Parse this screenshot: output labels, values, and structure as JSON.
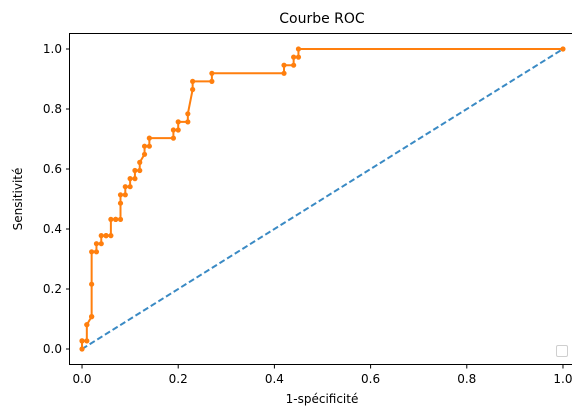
{
  "chart_data": {
    "type": "line",
    "title": "Courbe ROC",
    "xlabel": "1-spécificité",
    "ylabel": "Sensitivité",
    "xlim": [
      -0.025,
      1.025
    ],
    "ylim": [
      -0.05,
      1.05
    ],
    "xticks": [
      0.0,
      0.2,
      0.4,
      0.6,
      0.8,
      1.0
    ],
    "yticks": [
      0.0,
      0.2,
      0.4,
      0.6,
      0.8,
      1.0
    ],
    "xtick_labels": [
      "0.0",
      "0.2",
      "0.4",
      "0.6",
      "0.8",
      "1.0"
    ],
    "ytick_labels": [
      "0.0",
      "0.2",
      "0.4",
      "0.6",
      "0.8",
      "1.0"
    ],
    "grid": false,
    "legend": "bottom-right",
    "series": [
      {
        "style": "dashed",
        "color": "#3a8ac4",
        "marker": "none",
        "x": [
          0.0,
          1.0
        ],
        "y": [
          0.0,
          1.0
        ]
      },
      {
        "style": "solid",
        "color": "#ff7f0e",
        "marker": "dot",
        "x": [
          0.0,
          0.0,
          0.0,
          0.01,
          0.01,
          0.01,
          0.02,
          0.02,
          0.02,
          0.02,
          0.03,
          0.03,
          0.04,
          0.04,
          0.05,
          0.05,
          0.06,
          0.06,
          0.07,
          0.07,
          0.08,
          0.08,
          0.08,
          0.09,
          0.09,
          0.1,
          0.1,
          0.11,
          0.11,
          0.12,
          0.12,
          0.13,
          0.13,
          0.14,
          0.14,
          0.19,
          0.19,
          0.2,
          0.2,
          0.22,
          0.22,
          0.23,
          0.23,
          0.27,
          0.27,
          0.42,
          0.42,
          0.44,
          0.44,
          0.45,
          0.45,
          1.0
        ],
        "y": [
          0.0,
          0.027,
          0.027,
          0.027,
          0.081,
          0.081,
          0.108,
          0.108,
          0.216,
          0.324,
          0.324,
          0.351,
          0.351,
          0.378,
          0.378,
          0.378,
          0.378,
          0.432,
          0.432,
          0.432,
          0.432,
          0.486,
          0.514,
          0.514,
          0.541,
          0.541,
          0.568,
          0.568,
          0.595,
          0.595,
          0.622,
          0.649,
          0.676,
          0.676,
          0.703,
          0.703,
          0.73,
          0.73,
          0.757,
          0.757,
          0.784,
          0.865,
          0.892,
          0.892,
          0.919,
          0.919,
          0.946,
          0.946,
          0.973,
          0.973,
          1.0,
          1.0
        ]
      }
    ]
  }
}
